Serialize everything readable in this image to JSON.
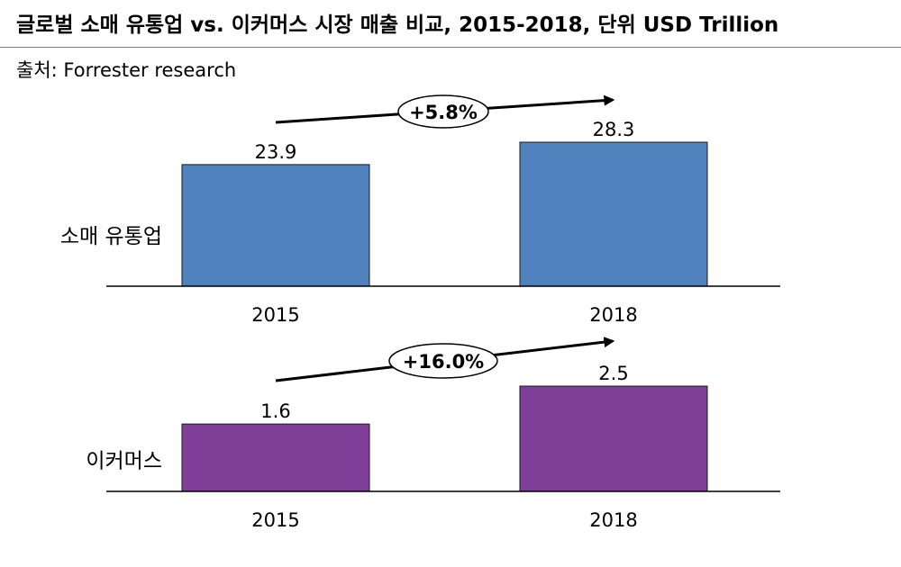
{
  "header": {
    "title": "글로벌 소매 유통업 vs. 이커머스 시장 매출 비교, 2015-2018, 단위 USD Trillion",
    "source": "출처: Forrester research"
  },
  "chart_data": [
    {
      "type": "bar",
      "label": "소매 유통업",
      "categories": [
        "2015",
        "2018"
      ],
      "values": [
        23.9,
        28.3
      ],
      "value_labels": [
        "23.9",
        "28.3"
      ],
      "growth_label": "+5.8%",
      "color": "#4F81BD"
    },
    {
      "type": "bar",
      "label": "이커머스",
      "categories": [
        "2015",
        "2018"
      ],
      "values": [
        1.6,
        2.5
      ],
      "value_labels": [
        "1.6",
        "2.5"
      ],
      "growth_label": "+16.0%",
      "color": "#7F3F98"
    }
  ]
}
